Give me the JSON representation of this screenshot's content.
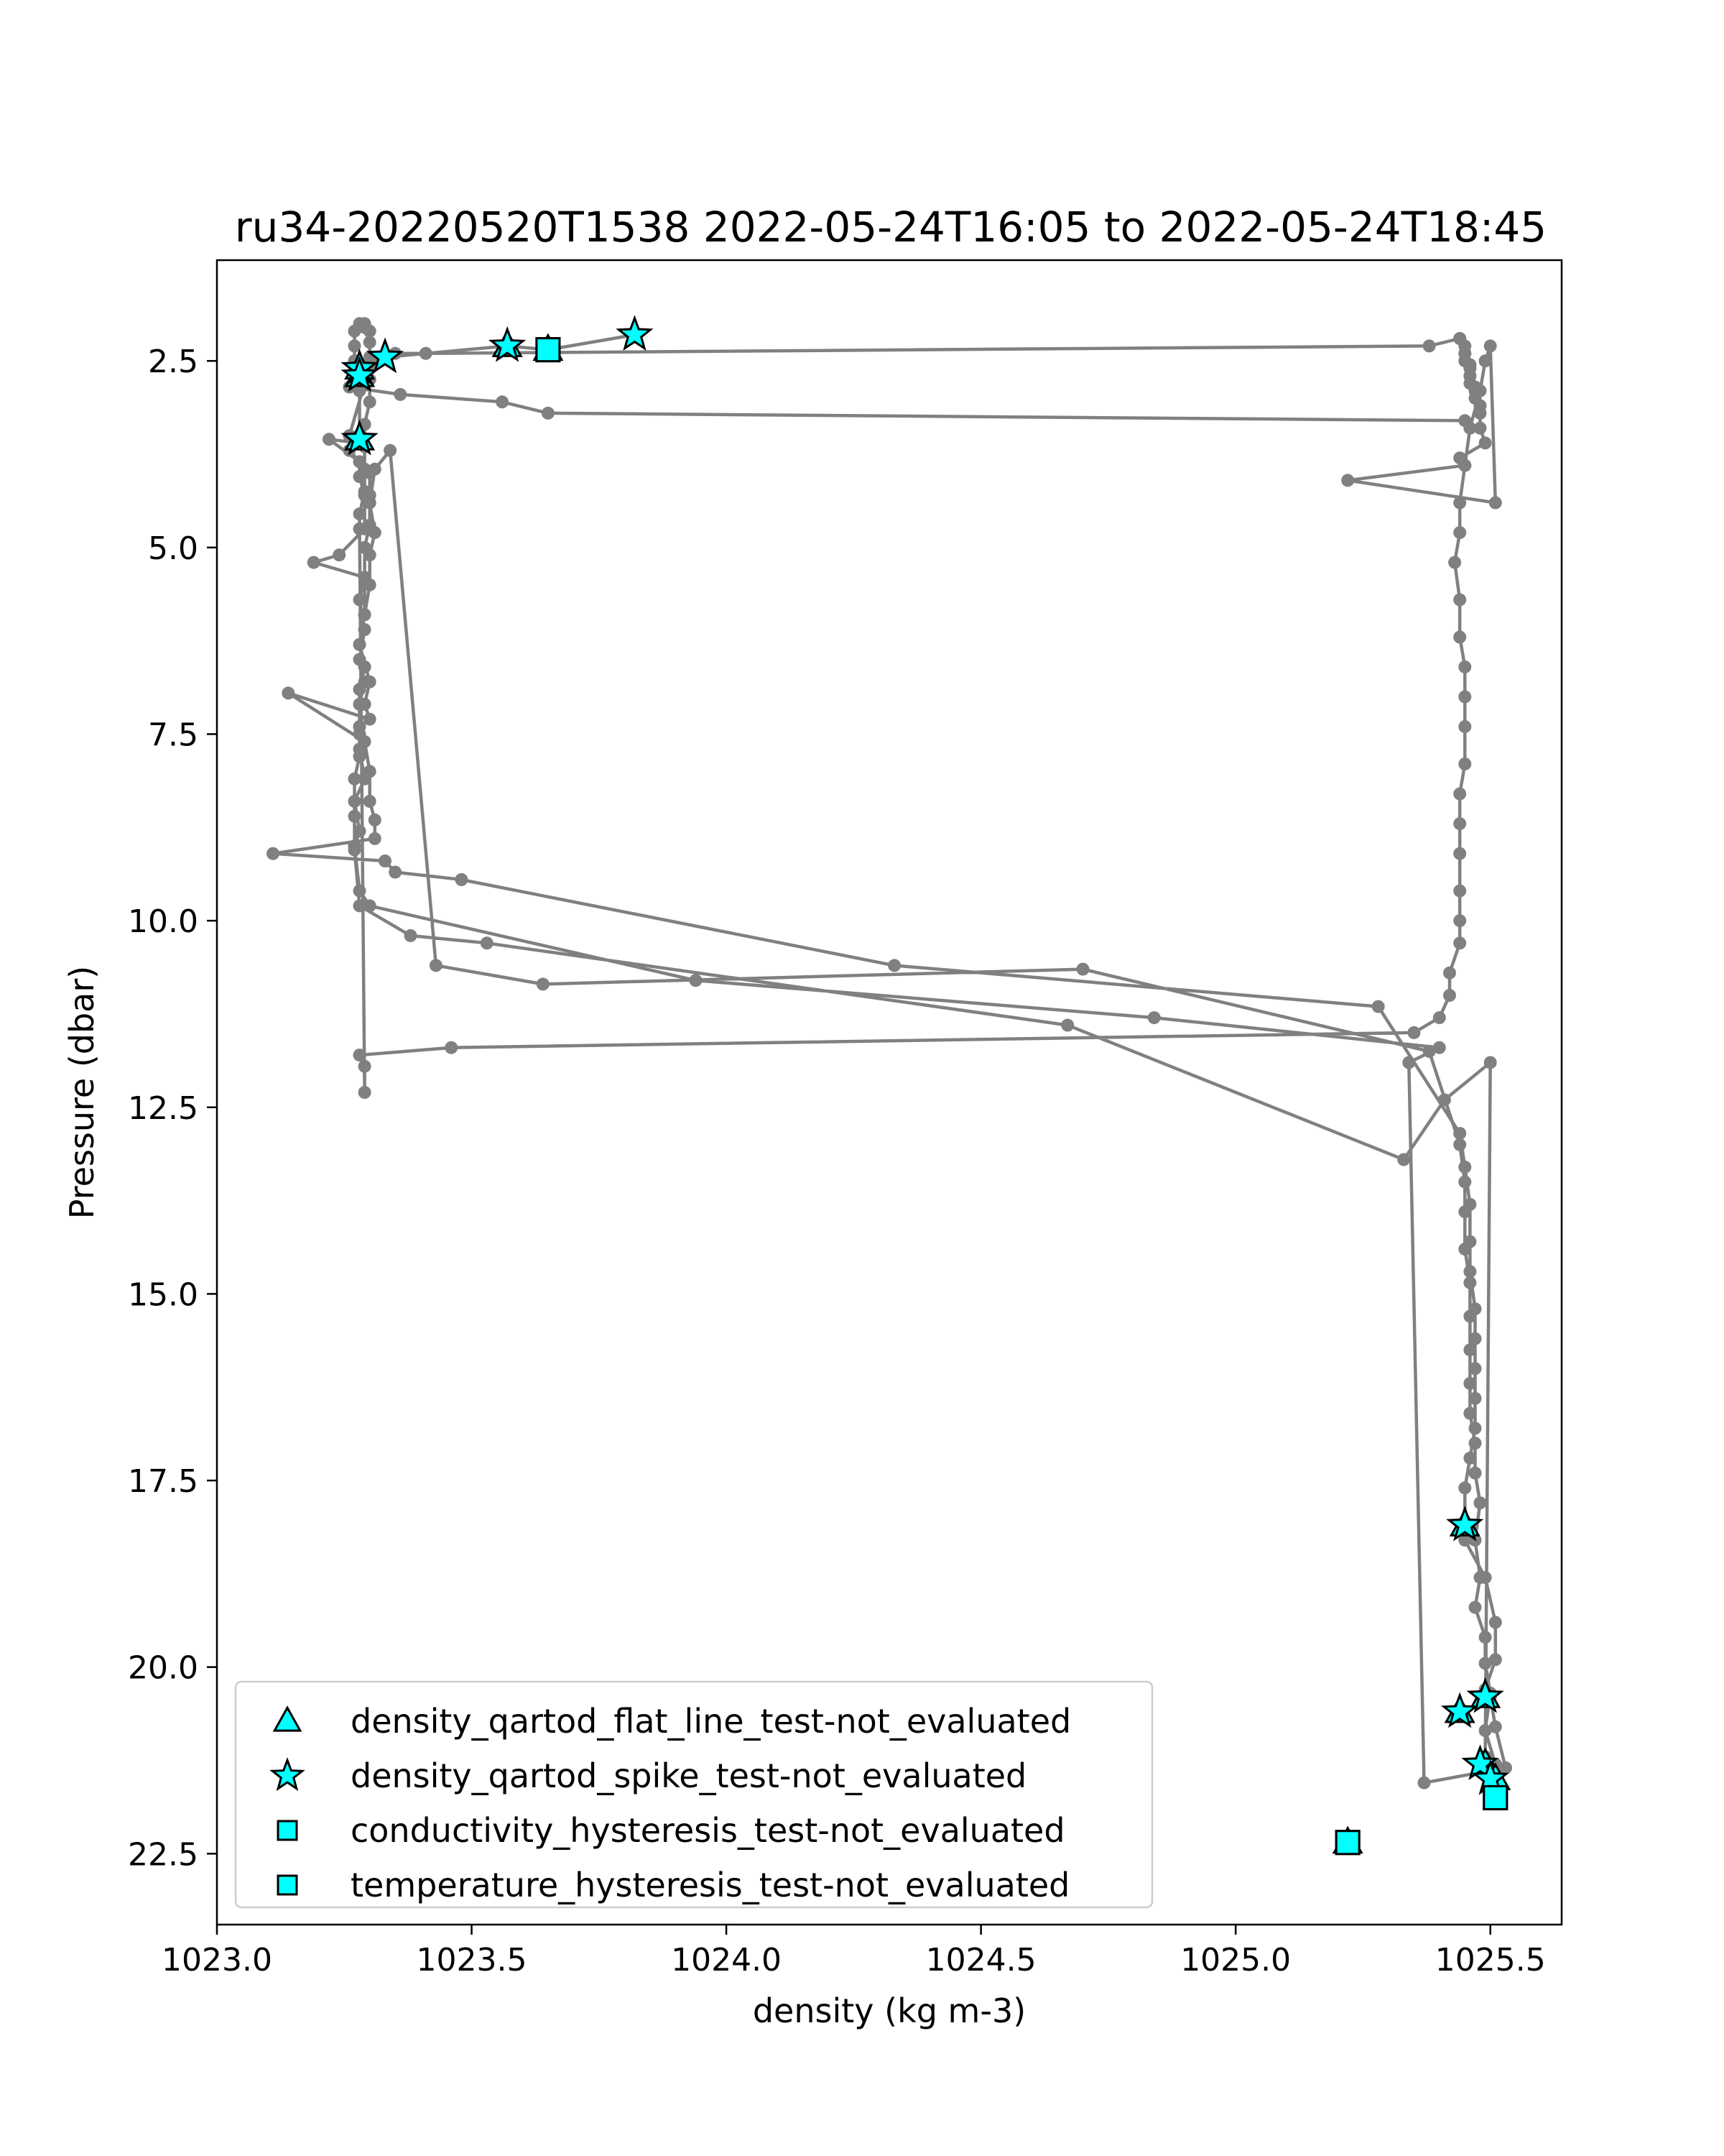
{
  "chart_data": {
    "type": "line",
    "title": "ru34-20220520T1538 2022-05-24T16:05 to 2022-05-24T18:45",
    "xlabel": "density (kg m-3)",
    "ylabel": "Pressure (dbar)",
    "xlim": [
      1023.0,
      1025.64
    ],
    "ylim": [
      23.45,
      1.15
    ],
    "y_inverted": true,
    "x_ticks": [
      1023.0,
      1023.5,
      1024.0,
      1024.5,
      1025.0,
      1025.5
    ],
    "x_tick_labels": [
      "1023.0",
      "1023.5",
      "1024.0",
      "1024.5",
      "1025.0",
      "1025.5"
    ],
    "y_ticks": [
      2.5,
      5.0,
      7.5,
      10.0,
      12.5,
      15.0,
      17.5,
      20.0,
      22.5
    ],
    "y_tick_labels": [
      "2.5",
      "5.0",
      "7.5",
      "10.0",
      "12.5",
      "15.0",
      "17.5",
      "20.0",
      "22.5"
    ],
    "grid": false,
    "legend_position": "lower-left",
    "line_color": "#808080",
    "marker_color": "#00ffff",
    "profile": {
      "density": [
        1023.82,
        1023.65,
        1023.57,
        1023.33,
        1023.27,
        1023.28,
        1023.28,
        1023.28,
        1023.22,
        1023.28,
        1023.28,
        1023.29,
        1023.29,
        1023.24,
        1023.19,
        1023.29,
        1023.29,
        1023.28,
        1023.3,
        1023.29,
        1023.3,
        1023.14,
        1023.29,
        1023.3,
        1023.3,
        1023.31,
        1023.31,
        1023.11,
        1023.33,
        1023.35,
        1023.48,
        1024.33,
        1025.28,
        1025.44,
        1025.45,
        1025.46,
        1025.46,
        1025.46,
        1025.47,
        1025.47,
        1025.47,
        1025.47,
        1025.47,
        1025.46,
        1025.45,
        1025.45,
        1025.45,
        1025.49,
        1025.51,
        1025.51,
        1025.49,
        1025.5,
        1025.51,
        1025.53,
        1025.37,
        1025.34,
        1025.4,
        1024.84,
        1023.94,
        1023.3,
        1023.28,
        1023.27,
        1023.28,
        1023.27,
        1023.29,
        1023.28,
        1023.28,
        1023.28,
        1023.29,
        1023.28,
        1023.29,
        1023.3,
        1023.3,
        1023.31,
        1023.3,
        1023.31,
        1023.34,
        1023.43,
        1023.64,
        1024.7,
        1025.38,
        1025.44,
        1025.45,
        1025.45,
        1025.45,
        1025.46,
        1025.46,
        1025.46,
        1025.46,
        1025.46,
        1025.47,
        1025.47,
        1025.48,
        1025.47,
        1025.48,
        1025.47,
        1025.49,
        1025.49,
        1025.5,
        1025.49,
        1025.51,
        1025.51,
        1025.5,
        1025.49,
        1025.5,
        1025.41,
        1025.33,
        1024.67,
        1023.53,
        1023.38,
        1023.28,
        1023.27,
        1023.27,
        1023.27,
        1023.28,
        1023.28,
        1023.28,
        1023.29,
        1023.28,
        1023.29,
        1023.28,
        1023.29,
        1023.29,
        1023.3,
        1023.3,
        1023.3,
        1023.26,
        1023.26,
        1023.29,
        1023.3,
        1023.31,
        1023.35,
        1023.41,
        1025.38,
        1025.44,
        1025.44,
        1025.45,
        1025.45,
        1025.45,
        1025.45,
        1025.46,
        1025.46,
        1025.46,
        1025.46,
        1025.47,
        1025.47,
        1025.47,
        1025.48,
        1025.48,
        1025.48,
        1025.49,
        1025.44,
        1025.45,
        1025.22,
        1025.51,
        1025.5,
        1025.49,
        1025.48,
        1025.46,
        1025.45,
        1025.44,
        1025.44,
        1025.43,
        1025.44,
        1025.44,
        1025.45,
        1025.45,
        1025.45,
        1025.45,
        1025.44,
        1025.44,
        1025.44,
        1025.44,
        1025.44,
        1025.44,
        1025.42,
        1025.42,
        1025.4,
        1025.35,
        1023.46,
        1023.28,
        1023.29,
        1023.29,
        1023.28,
        1023.28,
        1023.29,
        1023.29,
        1023.29,
        1023.29,
        1023.3,
        1023.3,
        1023.3,
        1023.3,
        1023.3,
        1023.29,
        1023.29,
        1023.28,
        1023.27,
        1023.27,
        1023.27,
        1023.27,
        1023.28,
        1023.26,
        1023.36,
        1023.56,
        1023.65,
        1025.45
      ],
      "pressure": [
        2.15,
        2.35,
        2.3,
        2.45,
        2.6,
        2.7,
        2.9,
        3.6,
        3.55,
        3.85,
        4.05,
        4.3,
        4.75,
        5.1,
        5.2,
        5.4,
        5.9,
        6.3,
        6.8,
        7.1,
        7.3,
        6.95,
        7.6,
        8.0,
        8.4,
        8.65,
        8.9,
        9.1,
        9.2,
        9.35,
        9.45,
        10.6,
        11.15,
        12.85,
        13.3,
        13.8,
        14.3,
        14.7,
        15.2,
        15.6,
        16.0,
        16.4,
        16.8,
        17.2,
        17.6,
        18.1,
        18.3,
        18.8,
        19.4,
        19.9,
        20.3,
        20.4,
        20.8,
        21.35,
        21.55,
        11.9,
        11.7,
        11.3,
        10.8,
        9.8,
        9.6,
        9.0,
        8.8,
        8.4,
        8.1,
        7.7,
        7.4,
        6.9,
        6.6,
        6.3,
        5.9,
        5.5,
        5.1,
        4.8,
        4.4,
        3.95,
        3.7,
        10.6,
        10.85,
        10.65,
        11.75,
        13.0,
        13.5,
        13.9,
        14.4,
        14.85,
        15.3,
        15.75,
        16.2,
        16.6,
        17.0,
        17.4,
        17.8,
        18.3,
        18.8,
        19.2,
        19.6,
        19.95,
        20.35,
        20.85,
        21.3,
        21.6,
        21.45,
        21.2,
        11.9,
        12.4,
        13.2,
        11.4,
        10.3,
        10.2,
        9.8,
        9.05,
        8.6,
        8.1,
        7.8,
        7.5,
        7.1,
        6.8,
        6.5,
        6.1,
        5.7,
        5.4,
        5.0,
        4.7,
        4.3,
        4.0,
        3.7,
        3.5,
        2.8,
        2.6,
        2.5,
        2.4,
        2.4,
        2.3,
        2.2,
        2.2,
        2.3,
        2.4,
        2.4,
        2.5,
        2.55,
        2.6,
        2.7,
        2.8,
        2.85,
        2.9,
        3.0,
        3.1,
        3.2,
        3.4,
        3.6,
        3.8,
        3.9,
        4.1,
        4.4,
        2.3,
        2.5,
        2.9,
        3.4,
        3.9,
        4.4,
        4.8,
        5.2,
        5.7,
        6.2,
        6.6,
        7.0,
        7.4,
        7.9,
        8.3,
        8.7,
        9.1,
        9.6,
        10.0,
        10.3,
        10.7,
        11.0,
        11.3,
        11.5,
        11.7,
        11.8,
        11.95,
        12.3,
        4.75,
        4.55,
        4.25,
        3.95,
        3.65,
        3.35,
        3.05,
        2.75,
        2.45,
        2.25,
        2.1,
        2.05,
        2.0,
        2.0,
        2.1,
        2.3,
        2.5,
        2.65,
        2.75,
        2.85,
        2.95,
        3.05,
        3.2,
        3.3,
        3.4,
        3.5,
        3.6,
        20.6
      ]
    },
    "series": [
      {
        "name": "density_qartod_flat_line_test-not_evaluated",
        "marker": "triangle",
        "density": [
          1023.65,
          1023.57,
          1023.28,
          1023.28,
          1023.28,
          1025.45,
          1025.49,
          1025.44,
          1025.49,
          1025.51,
          1025.22
        ],
        "pressure": [
          2.35,
          2.3,
          2.6,
          2.7,
          3.55,
          18.1,
          20.4,
          20.6,
          21.3,
          21.5,
          22.35
        ]
      },
      {
        "name": "density_qartod_spike_test-not_evaluated",
        "marker": "star",
        "density": [
          1023.82,
          1023.57,
          1023.33,
          1023.28,
          1023.28,
          1023.28,
          1025.45,
          1025.49,
          1025.44,
          1025.48,
          1025.5
        ],
        "pressure": [
          2.15,
          2.3,
          2.45,
          2.6,
          2.7,
          3.55,
          18.1,
          20.4,
          20.6,
          21.3,
          21.5
        ]
      },
      {
        "name": "conductivity_hysteresis_test-not_evaluated",
        "marker": "square",
        "density": [
          1023.65,
          1025.51,
          1025.22
        ],
        "pressure": [
          2.35,
          21.75,
          22.35
        ]
      },
      {
        "name": "temperature_hysteresis_test-not_evaluated",
        "marker": "square",
        "density": [
          1023.65,
          1025.51,
          1025.22
        ],
        "pressure": [
          2.35,
          21.75,
          22.35
        ]
      }
    ]
  }
}
